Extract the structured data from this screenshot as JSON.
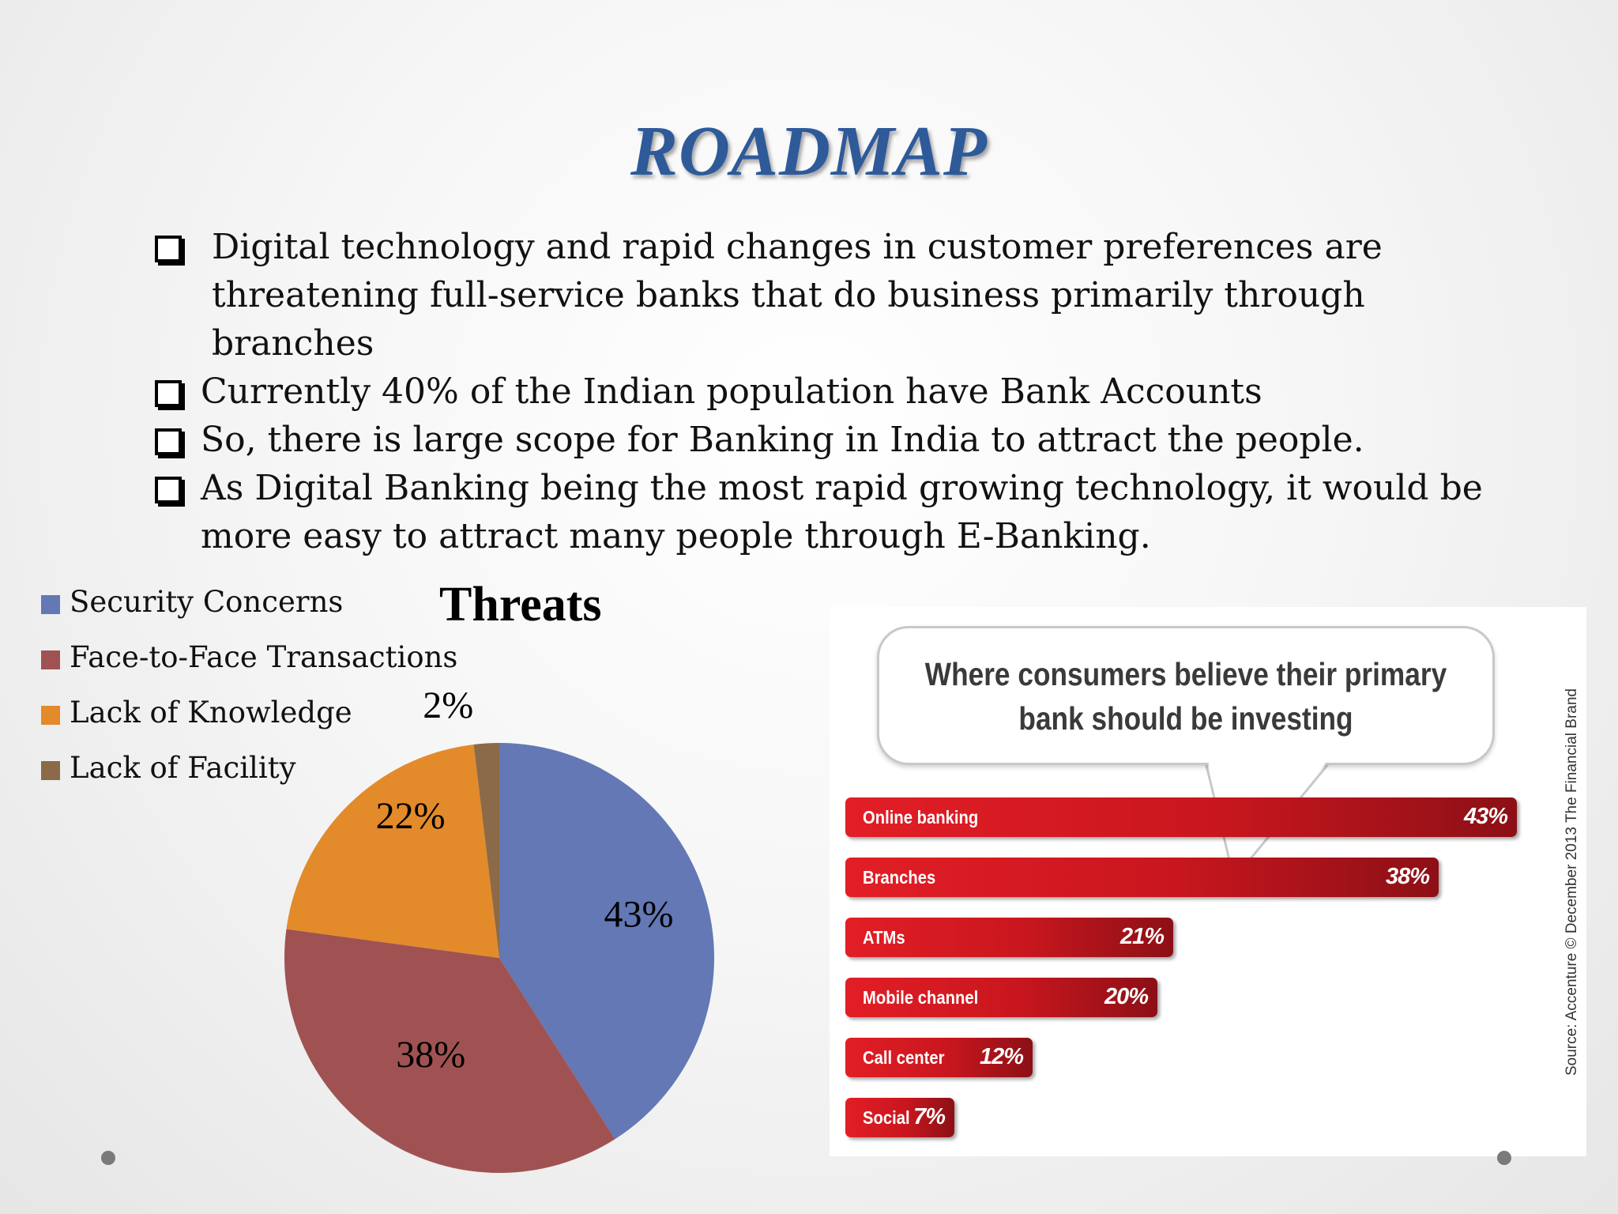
{
  "slide": {
    "title": "ROADMAP",
    "bullets": [
      "Digital technology and rapid changes in customer preferences are threatening full-service banks that do business primarily through branches",
      "Currently 40% of the Indian population have Bank Accounts",
      "So, there is large scope for Banking in India to attract the people.",
      "As Digital Banking being the most rapid growing technology, it would be more easy to attract many people through E-Banking."
    ]
  },
  "chart_data": [
    {
      "type": "pie",
      "title": "Threats",
      "legend_position": "left",
      "categories": [
        "Security Concerns",
        "Face-to-Face Transactions",
        "Lack of Knowledge",
        "Lack of Facility"
      ],
      "values": [
        43,
        38,
        22,
        2
      ],
      "labels": [
        "43%",
        "38%",
        "22%",
        "2%"
      ],
      "colors": [
        "#6378b5",
        "#a05252",
        "#e38a2a",
        "#8a6a48"
      ]
    },
    {
      "type": "bar",
      "orientation": "horizontal",
      "title": "Where consumers believe their primary bank should be investing",
      "categories": [
        "Online banking",
        "Branches",
        "ATMs",
        "Mobile channel",
        "Call center",
        "Social"
      ],
      "values": [
        43,
        38,
        21,
        20,
        12,
        7
      ],
      "labels": [
        "43%",
        "38%",
        "21%",
        "20%",
        "12%",
        "7%"
      ],
      "xlim": [
        0,
        43
      ],
      "source": "Source: Accenture © December 2013 The Financial Brand",
      "bar_color": "#d31a22"
    }
  ]
}
